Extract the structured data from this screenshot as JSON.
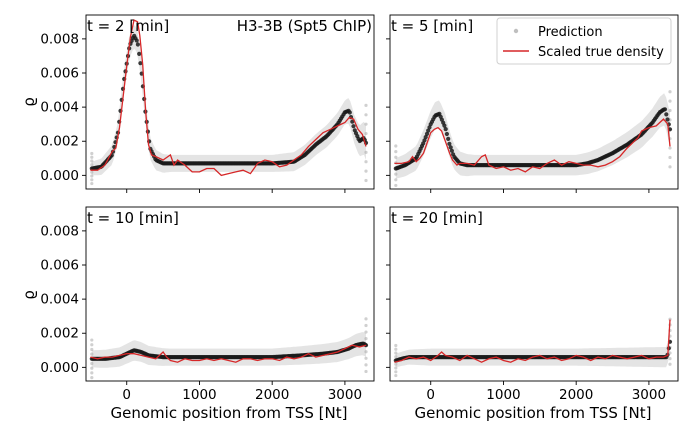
{
  "figure": {
    "xlabel": "Genomic position from TSS [Nt]",
    "ylabel": "ϱ",
    "title_annotation": "H3-3B (Spt5 ChIP)",
    "legend": {
      "location": "top-right",
      "entries": [
        {
          "label": "Prediction",
          "marker": "dot",
          "color": "#bfbfbf"
        },
        {
          "label": "Scaled true density",
          "marker": "line",
          "color": "#d62728"
        }
      ]
    },
    "colors": {
      "prediction": "#1a1a1a",
      "prediction_faint": "#aaaaaa",
      "band": "#e4e4e4",
      "true_density": "#d62728"
    }
  },
  "chart_data": {
    "type": "line",
    "x_range": [
      -560,
      3400
    ],
    "y_range": [
      -0.0008,
      0.0094
    ],
    "x_ticks": [
      0,
      1000,
      2000,
      3000
    ],
    "x_tick_labels": [
      "0",
      "1000",
      "2000",
      "3000"
    ],
    "y_ticks": [
      0.0,
      0.002,
      0.004,
      0.006,
      0.008
    ],
    "y_tick_labels": [
      "0.000",
      "0.002",
      "0.004",
      "0.006",
      "0.008"
    ],
    "panels": [
      {
        "label": "t = 2 [min]",
        "prediction": [
          [
            -480,
            0.0004
          ],
          [
            -350,
            0.0005
          ],
          [
            -200,
            0.0012
          ],
          [
            -120,
            0.0025
          ],
          [
            -40,
            0.0055
          ],
          [
            40,
            0.0076
          ],
          [
            100,
            0.0082
          ],
          [
            150,
            0.0078
          ],
          [
            200,
            0.0062
          ],
          [
            260,
            0.0036
          ],
          [
            320,
            0.0016
          ],
          [
            400,
            0.0009
          ],
          [
            500,
            0.0007
          ],
          [
            700,
            0.0007
          ],
          [
            1000,
            0.0007
          ],
          [
            1500,
            0.0007
          ],
          [
            2000,
            0.0007
          ],
          [
            2300,
            0.0008
          ],
          [
            2450,
            0.0012
          ],
          [
            2600,
            0.0018
          ],
          [
            2750,
            0.0023
          ],
          [
            2900,
            0.003
          ],
          [
            3000,
            0.0037
          ],
          [
            3060,
            0.0038
          ],
          [
            3130,
            0.0027
          ],
          [
            3200,
            0.002
          ],
          [
            3260,
            0.0022
          ],
          [
            3290,
            0.0019
          ]
        ],
        "band_halfwidth": [
          [
            -480,
            0.0004
          ],
          [
            0,
            0.0007
          ],
          [
            200,
            0.0007
          ],
          [
            600,
            0.0005
          ],
          [
            2000,
            0.0005
          ],
          [
            3000,
            0.0007
          ],
          [
            3290,
            0.001
          ]
        ],
        "true_density": [
          [
            -500,
            0.0003
          ],
          [
            -400,
            0.0003
          ],
          [
            -300,
            0.0006
          ],
          [
            -200,
            0.0014
          ],
          [
            -150,
            0.0016
          ],
          [
            -100,
            0.0028
          ],
          [
            -50,
            0.0046
          ],
          [
            0,
            0.0064
          ],
          [
            50,
            0.0081
          ],
          [
            100,
            0.0091
          ],
          [
            150,
            0.009
          ],
          [
            180,
            0.0082
          ],
          [
            220,
            0.0065
          ],
          [
            260,
            0.0038
          ],
          [
            300,
            0.0018
          ],
          [
            340,
            0.0012
          ],
          [
            400,
            0.0011
          ],
          [
            500,
            0.0009
          ],
          [
            600,
            0.0012
          ],
          [
            650,
            0.0006
          ],
          [
            700,
            0.0009
          ],
          [
            800,
            0.0006
          ],
          [
            900,
            0.0002
          ],
          [
            1000,
            0.0002
          ],
          [
            1100,
            0.0004
          ],
          [
            1200,
            0.0004
          ],
          [
            1300,
            0.0
          ],
          [
            1400,
            0.0001
          ],
          [
            1500,
            0.0002
          ],
          [
            1600,
            0.0003
          ],
          [
            1700,
            0.0001
          ],
          [
            1800,
            0.0007
          ],
          [
            1900,
            0.0009
          ],
          [
            2000,
            0.0008
          ],
          [
            2100,
            0.0005
          ],
          [
            2200,
            0.0006
          ],
          [
            2300,
            0.0009
          ],
          [
            2400,
            0.0012
          ],
          [
            2500,
            0.0017
          ],
          [
            2600,
            0.0021
          ],
          [
            2700,
            0.0025
          ],
          [
            2800,
            0.0027
          ],
          [
            2900,
            0.0029
          ],
          [
            3000,
            0.0031
          ],
          [
            3060,
            0.0034
          ],
          [
            3120,
            0.0033
          ],
          [
            3180,
            0.0027
          ],
          [
            3240,
            0.0024
          ],
          [
            3290,
            0.0017
          ]
        ]
      },
      {
        "label": "t = 5 [min]",
        "prediction": [
          [
            -480,
            0.0004
          ],
          [
            -350,
            0.0006
          ],
          [
            -200,
            0.001
          ],
          [
            -100,
            0.0019
          ],
          [
            0,
            0.003
          ],
          [
            60,
            0.0035
          ],
          [
            120,
            0.0036
          ],
          [
            200,
            0.0028
          ],
          [
            260,
            0.0018
          ],
          [
            320,
            0.0011
          ],
          [
            400,
            0.0007
          ],
          [
            500,
            0.0006
          ],
          [
            800,
            0.0006
          ],
          [
            1200,
            0.0006
          ],
          [
            1600,
            0.0006
          ],
          [
            2000,
            0.0006
          ],
          [
            2150,
            0.0007
          ],
          [
            2300,
            0.0009
          ],
          [
            2500,
            0.0013
          ],
          [
            2700,
            0.0018
          ],
          [
            2900,
            0.0024
          ],
          [
            3050,
            0.0031
          ],
          [
            3150,
            0.0037
          ],
          [
            3220,
            0.0039
          ],
          [
            3260,
            0.0032
          ],
          [
            3290,
            0.0027
          ]
        ],
        "band_halfwidth": [
          [
            -480,
            0.0006
          ],
          [
            0,
            0.0008
          ],
          [
            200,
            0.0008
          ],
          [
            600,
            0.0006
          ],
          [
            2000,
            0.0006
          ],
          [
            3000,
            0.0008
          ],
          [
            3290,
            0.001
          ]
        ],
        "true_density": [
          [
            -500,
            0.0007
          ],
          [
            -400,
            0.0007
          ],
          [
            -300,
            0.0008
          ],
          [
            -250,
            0.0011
          ],
          [
            -200,
            0.0008
          ],
          [
            -150,
            0.001
          ],
          [
            -100,
            0.0013
          ],
          [
            -50,
            0.0019
          ],
          [
            0,
            0.0025
          ],
          [
            50,
            0.0027
          ],
          [
            100,
            0.0028
          ],
          [
            150,
            0.0026
          ],
          [
            200,
            0.002
          ],
          [
            260,
            0.0013
          ],
          [
            300,
            0.0009
          ],
          [
            360,
            0.0006
          ],
          [
            400,
            0.0007
          ],
          [
            500,
            0.0007
          ],
          [
            600,
            0.0006
          ],
          [
            700,
            0.0011
          ],
          [
            750,
            0.0012
          ],
          [
            800,
            0.0006
          ],
          [
            900,
            0.0004
          ],
          [
            1000,
            0.0005
          ],
          [
            1100,
            0.0003
          ],
          [
            1200,
            0.0004
          ],
          [
            1300,
            0.0002
          ],
          [
            1400,
            0.0005
          ],
          [
            1500,
            0.0004
          ],
          [
            1600,
            0.0007
          ],
          [
            1700,
            0.0009
          ],
          [
            1800,
            0.0006
          ],
          [
            1900,
            0.0008
          ],
          [
            2000,
            0.0007
          ],
          [
            2100,
            0.0006
          ],
          [
            2200,
            0.0006
          ],
          [
            2300,
            0.0005
          ],
          [
            2400,
            0.0006
          ],
          [
            2500,
            0.0008
          ],
          [
            2600,
            0.0011
          ],
          [
            2700,
            0.0016
          ],
          [
            2800,
            0.002
          ],
          [
            2850,
            0.0022
          ],
          [
            2900,
            0.0026
          ],
          [
            3000,
            0.0028
          ],
          [
            3100,
            0.0029
          ],
          [
            3150,
            0.0031
          ],
          [
            3200,
            0.0033
          ],
          [
            3260,
            0.003
          ],
          [
            3290,
            0.0017
          ]
        ]
      },
      {
        "label": "t = 10 [min]",
        "prediction": [
          [
            -480,
            0.0005
          ],
          [
            -300,
            0.0005
          ],
          [
            -100,
            0.0006
          ],
          [
            0,
            0.0008
          ],
          [
            100,
            0.001
          ],
          [
            200,
            0.0009
          ],
          [
            300,
            0.0007
          ],
          [
            500,
            0.0006
          ],
          [
            1000,
            0.0006
          ],
          [
            1500,
            0.0006
          ],
          [
            2000,
            0.0006
          ],
          [
            2400,
            0.0007
          ],
          [
            2700,
            0.0008
          ],
          [
            2900,
            0.0009
          ],
          [
            3050,
            0.0011
          ],
          [
            3150,
            0.0013
          ],
          [
            3250,
            0.0014
          ],
          [
            3290,
            0.0013
          ]
        ],
        "band_halfwidth": [
          [
            -480,
            0.0005
          ],
          [
            100,
            0.0006
          ],
          [
            600,
            0.0005
          ],
          [
            2000,
            0.0005
          ],
          [
            3000,
            0.0006
          ],
          [
            3290,
            0.0007
          ]
        ],
        "true_density": [
          [
            -500,
            0.0006
          ],
          [
            -400,
            0.0005
          ],
          [
            -300,
            0.0006
          ],
          [
            -200,
            0.0006
          ],
          [
            -100,
            0.0007
          ],
          [
            0,
            0.0008
          ],
          [
            100,
            0.0008
          ],
          [
            200,
            0.0007
          ],
          [
            300,
            0.0006
          ],
          [
            400,
            0.0005
          ],
          [
            500,
            0.0009
          ],
          [
            550,
            0.0006
          ],
          [
            600,
            0.0004
          ],
          [
            700,
            0.0003
          ],
          [
            800,
            0.0005
          ],
          [
            900,
            0.0004
          ],
          [
            1000,
            0.0004
          ],
          [
            1100,
            0.0005
          ],
          [
            1200,
            0.0004
          ],
          [
            1300,
            0.0005
          ],
          [
            1400,
            0.0004
          ],
          [
            1500,
            0.0003
          ],
          [
            1600,
            0.0005
          ],
          [
            1700,
            0.0005
          ],
          [
            1800,
            0.0004
          ],
          [
            1900,
            0.0005
          ],
          [
            2000,
            0.0005
          ],
          [
            2100,
            0.0004
          ],
          [
            2200,
            0.0006
          ],
          [
            2300,
            0.0005
          ],
          [
            2400,
            0.0006
          ],
          [
            2500,
            0.0008
          ],
          [
            2600,
            0.0006
          ],
          [
            2700,
            0.0007
          ],
          [
            2800,
            0.0008
          ],
          [
            2900,
            0.0009
          ],
          [
            3000,
            0.0011
          ],
          [
            3100,
            0.0013
          ],
          [
            3200,
            0.0012
          ],
          [
            3290,
            0.0013
          ]
        ]
      },
      {
        "label": "t = 20 [min]",
        "prediction": [
          [
            -480,
            0.0004
          ],
          [
            -400,
            0.0005
          ],
          [
            -300,
            0.0006
          ],
          [
            0,
            0.0006
          ],
          [
            500,
            0.0006
          ],
          [
            1000,
            0.0006
          ],
          [
            1500,
            0.0006
          ],
          [
            2000,
            0.0006
          ],
          [
            2500,
            0.0006
          ],
          [
            3000,
            0.0006
          ],
          [
            3250,
            0.0006
          ],
          [
            3290,
            0.0015
          ]
        ],
        "band_halfwidth": [
          [
            -480,
            0.0004
          ],
          [
            0,
            0.0005
          ],
          [
            2000,
            0.0005
          ],
          [
            3290,
            0.0006
          ]
        ],
        "true_density": [
          [
            -500,
            0.0003
          ],
          [
            -400,
            0.0004
          ],
          [
            -300,
            0.0006
          ],
          [
            -200,
            0.0005
          ],
          [
            -100,
            0.0006
          ],
          [
            0,
            0.0004
          ],
          [
            100,
            0.0007
          ],
          [
            150,
            0.0009
          ],
          [
            200,
            0.0007
          ],
          [
            300,
            0.0006
          ],
          [
            400,
            0.0004
          ],
          [
            500,
            0.0007
          ],
          [
            600,
            0.0005
          ],
          [
            700,
            0.0003
          ],
          [
            800,
            0.0005
          ],
          [
            900,
            0.0006
          ],
          [
            1000,
            0.0004
          ],
          [
            1100,
            0.0003
          ],
          [
            1200,
            0.0005
          ],
          [
            1300,
            0.0004
          ],
          [
            1400,
            0.0006
          ],
          [
            1500,
            0.0007
          ],
          [
            1600,
            0.0005
          ],
          [
            1700,
            0.0006
          ],
          [
            1800,
            0.0004
          ],
          [
            1900,
            0.0005
          ],
          [
            2000,
            0.0007
          ],
          [
            2100,
            0.0006
          ],
          [
            2200,
            0.0004
          ],
          [
            2300,
            0.0006
          ],
          [
            2400,
            0.0005
          ],
          [
            2500,
            0.0007
          ],
          [
            2600,
            0.0006
          ],
          [
            2700,
            0.0005
          ],
          [
            2800,
            0.0006
          ],
          [
            2900,
            0.0007
          ],
          [
            3000,
            0.0005
          ],
          [
            3100,
            0.0006
          ],
          [
            3200,
            0.0006
          ],
          [
            3260,
            0.0007
          ],
          [
            3290,
            0.0028
          ]
        ]
      }
    ]
  }
}
